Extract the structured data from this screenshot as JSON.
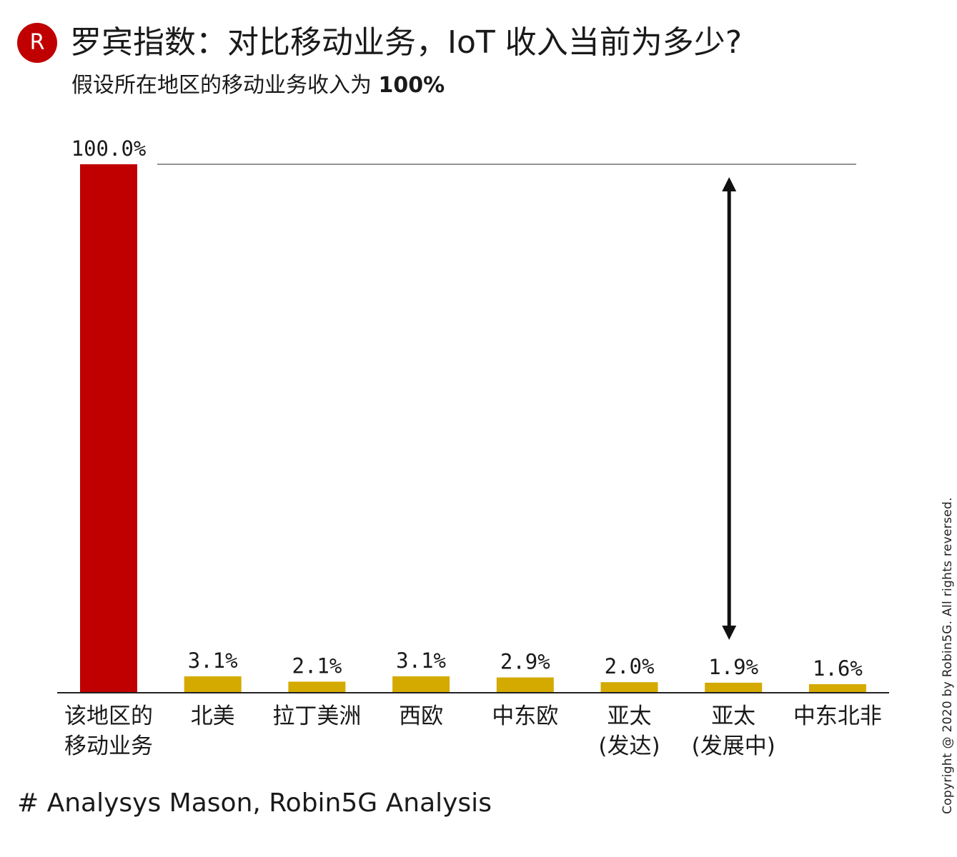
{
  "header": {
    "logo_letter": "R",
    "title": "罗宾指数：对比移动业务，IoT 收入当前为多少?",
    "subtitle_prefix": "假设所在地区的移动业务收入为 ",
    "subtitle_value": "100%"
  },
  "chart_data": {
    "type": "bar",
    "categories": [
      [
        "该地区的",
        "移动业务"
      ],
      [
        "北美"
      ],
      [
        "拉丁美洲"
      ],
      [
        "西欧"
      ],
      [
        "中东欧"
      ],
      [
        "亚太",
        "(发达)"
      ],
      [
        "亚太",
        "(发展中)"
      ],
      [
        "中东北非"
      ]
    ],
    "values": [
      100.0,
      3.1,
      2.1,
      3.1,
      2.9,
      2.0,
      1.9,
      1.6
    ],
    "value_labels": [
      "100.0%",
      "3.1%",
      "2.1%",
      "3.1%",
      "2.9%",
      "2.0%",
      "1.9%",
      "1.6%"
    ],
    "ylim": [
      0,
      100
    ],
    "colors": [
      "#c00000",
      "#d4aa00",
      "#d4aa00",
      "#d4aa00",
      "#d4aa00",
      "#d4aa00",
      "#d4aa00",
      "#d4aa00"
    ],
    "reference_line": 100,
    "annotation_arrow": {
      "category_index": 6,
      "from": 1.9,
      "to": 100
    },
    "grid": false,
    "title": "",
    "xlabel": "",
    "ylabel": ""
  },
  "footer": {
    "source": "# Analysys Mason, Robin5G Analysis",
    "copyright": "Copyright @ 2020 by Robin5G. All rights reversed."
  }
}
